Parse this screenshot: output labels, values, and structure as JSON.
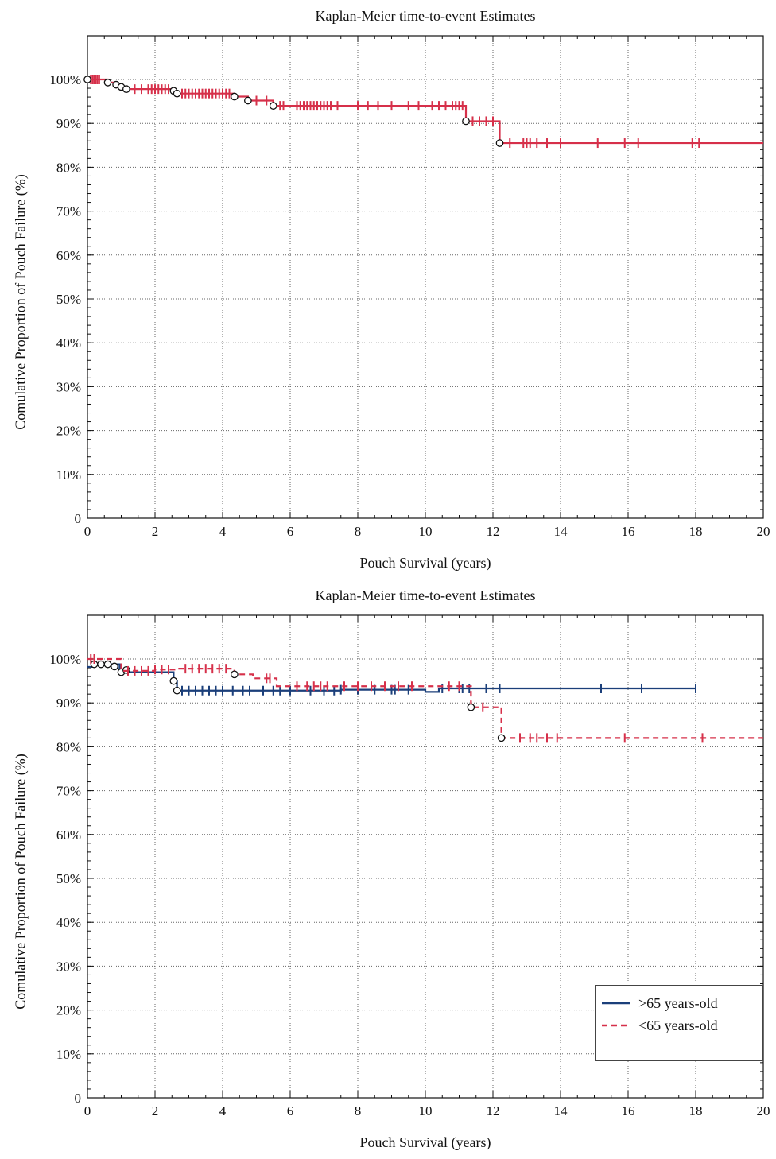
{
  "chart_data": [
    {
      "type": "line",
      "title": "Kaplan-Meier time-to-event Estimates",
      "xlabel": "Pouch Survival (years)",
      "ylabel": "Comulative Proportion of Pouch Failure (%)",
      "xlim": [
        0,
        20
      ],
      "ylim": [
        0,
        100
      ],
      "x_ticks": [
        "0",
        "2",
        "4",
        "6",
        "8",
        "10",
        "12",
        "14",
        "16",
        "18",
        "20"
      ],
      "y_ticks": [
        "0",
        "10%",
        "20%",
        "30%",
        "40%",
        "50%",
        "60%",
        "70%",
        "80%",
        "90%",
        "100%"
      ],
      "grid": true,
      "series": [
        {
          "color": "#d6304a",
          "dash": false,
          "steps": [
            [
              0,
              100
            ],
            [
              0.6,
              99.3
            ],
            [
              0.85,
              98.8
            ],
            [
              1.0,
              98.3
            ],
            [
              1.15,
              97.8
            ],
            [
              2.55,
              97.4
            ],
            [
              2.65,
              96.8
            ],
            [
              4.35,
              96.1
            ],
            [
              4.75,
              95.2
            ],
            [
              5.5,
              94.0
            ],
            [
              11.2,
              90.5
            ],
            [
              12.2,
              85.5
            ],
            [
              20,
              85.5
            ]
          ],
          "events": [
            [
              0,
              100
            ],
            [
              0.6,
              99.3
            ],
            [
              0.85,
              98.8
            ],
            [
              1.0,
              98.3
            ],
            [
              1.15,
              97.8
            ],
            [
              2.55,
              97.4
            ],
            [
              2.65,
              96.8
            ],
            [
              4.35,
              96.1
            ],
            [
              4.75,
              95.2
            ],
            [
              5.5,
              94.0
            ],
            [
              11.2,
              90.5
            ],
            [
              12.2,
              85.5
            ]
          ],
          "censored": [
            0.1,
            0.15,
            0.2,
            0.25,
            0.3,
            0.35,
            1.4,
            1.6,
            1.8,
            1.9,
            2.0,
            2.1,
            2.2,
            2.3,
            2.4,
            2.8,
            2.9,
            3.0,
            3.1,
            3.2,
            3.3,
            3.4,
            3.5,
            3.6,
            3.7,
            3.8,
            3.9,
            4.0,
            4.1,
            4.2,
            5.0,
            5.3,
            5.7,
            5.8,
            6.2,
            6.3,
            6.4,
            6.5,
            6.6,
            6.7,
            6.8,
            6.9,
            7.0,
            7.1,
            7.2,
            7.4,
            8.0,
            8.3,
            8.6,
            9.0,
            9.5,
            9.8,
            10.2,
            10.4,
            10.6,
            10.8,
            10.9,
            11.0,
            11.1,
            11.4,
            11.6,
            11.8,
            12.0,
            12.5,
            12.9,
            13.0,
            13.1,
            13.3,
            13.6,
            14.0,
            15.1,
            15.9,
            16.3,
            17.9,
            18.1
          ]
        }
      ]
    },
    {
      "type": "line",
      "title": "Kaplan-Meier time-to-event Estimates",
      "xlabel": "Pouch Survival (years)",
      "ylabel": "Comulative Proportion of Pouch Failure (%)",
      "xlim": [
        0,
        20
      ],
      "ylim": [
        0,
        100
      ],
      "x_ticks": [
        "0",
        "2",
        "4",
        "6",
        "8",
        "10",
        "12",
        "14",
        "16",
        "18",
        "20"
      ],
      "y_ticks": [
        "0",
        "10%",
        "20%",
        "30%",
        "40%",
        "50%",
        "60%",
        "70%",
        "80%",
        "90%",
        "100%"
      ],
      "grid": true,
      "legend": "bottom-right",
      "series": [
        {
          "name": ">65 years-old",
          "color": "#1b3f7a",
          "dash": false,
          "steps": [
            [
              0,
              98.2
            ],
            [
              0.2,
              98.8
            ],
            [
              0.95,
              97.0
            ],
            [
              2.55,
              95.0
            ],
            [
              2.65,
              92.8
            ],
            [
              7.5,
              93.0
            ],
            [
              10.0,
              92.5
            ],
            [
              10.4,
              93.3
            ],
            [
              18,
              93.3
            ]
          ],
          "events": [
            [
              0.2,
              98.8
            ],
            [
              0.4,
              98.8
            ],
            [
              0.6,
              98.8
            ],
            [
              0.8,
              98.3
            ],
            [
              1.0,
              97.0
            ],
            [
              1.15,
              97.5
            ],
            [
              2.55,
              95.0
            ],
            [
              2.65,
              92.8
            ]
          ],
          "censored": [
            2.8,
            3.0,
            3.2,
            3.4,
            3.6,
            3.8,
            4.0,
            4.3,
            4.6,
            4.8,
            5.2,
            5.5,
            5.7,
            6.0,
            6.6,
            7.0,
            7.3,
            7.5,
            8.0,
            8.5,
            9.0,
            9.1,
            9.5,
            10.5,
            11.0,
            11.1,
            11.3,
            11.8,
            12.2,
            15.2,
            16.4,
            18.0
          ]
        },
        {
          "name": "<65 years-old",
          "color": "#d6304a",
          "dash": true,
          "steps": [
            [
              0,
              100
            ],
            [
              1.0,
              97.3
            ],
            [
              2.0,
              97.6
            ],
            [
              2.65,
              97.8
            ],
            [
              4.35,
              96.5
            ],
            [
              4.9,
              95.6
            ],
            [
              5.6,
              93.8
            ],
            [
              11.35,
              89.0
            ],
            [
              12.25,
              82.0
            ],
            [
              20,
              82.0
            ]
          ],
          "events": [
            [
              4.35,
              96.5
            ],
            [
              11.35,
              89.0
            ],
            [
              12.25,
              82.0
            ]
          ],
          "censored": [
            0.1,
            0.2,
            1.2,
            1.4,
            1.6,
            1.8,
            2.0,
            2.2,
            2.4,
            2.9,
            3.1,
            3.3,
            3.5,
            3.7,
            3.9,
            4.1,
            5.3,
            5.4,
            6.2,
            6.5,
            6.7,
            6.9,
            7.1,
            7.6,
            8.0,
            8.4,
            8.8,
            9.2,
            9.6,
            10.7,
            11.0,
            11.7,
            12.8,
            13.1,
            13.3,
            13.6,
            13.9,
            15.9,
            18.2
          ]
        }
      ]
    }
  ]
}
